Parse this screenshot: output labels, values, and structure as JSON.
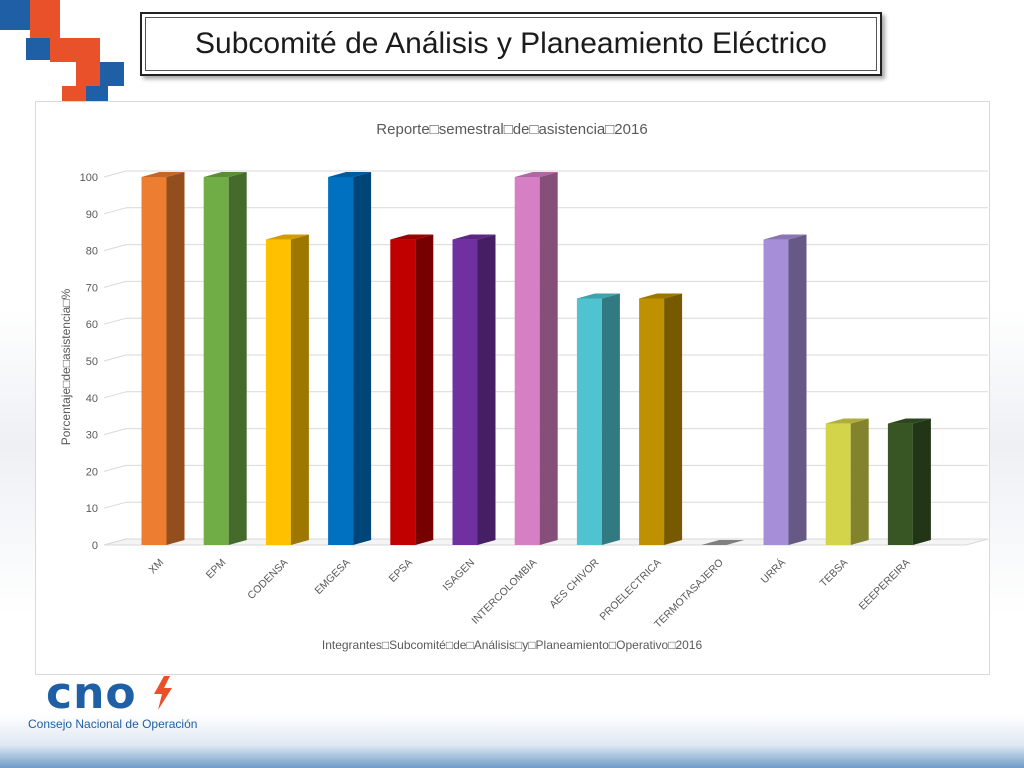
{
  "slide": {
    "title": "Subcomité de Análisis y Planeamiento Eléctrico"
  },
  "logo": {
    "word": "cno",
    "subtitle": "Consejo Nacional de Operación",
    "color": "#1f5fa6",
    "accent": "#e8512a"
  },
  "chart_data": {
    "type": "bar",
    "style": "3d-column",
    "title": "Reporte□semestral□de□asistencia□2016",
    "xlabel": "Integrantes□Subcomité□de□Análisis□y□Planeamiento□Operativo□2016",
    "ylabel": "Porcentaje□de□asistencia□%",
    "ylim": [
      0,
      100
    ],
    "yticks": [
      0,
      10,
      20,
      30,
      40,
      50,
      60,
      70,
      80,
      90,
      100
    ],
    "grid": true,
    "categories": [
      "XM",
      "EPM",
      "CODENSA",
      "EMGESA",
      "EPSA",
      "ISAGEN",
      "INTERCOLOMBIA",
      "AES CHIVOR",
      "PROELECTRICA",
      "TERMOTASAJERO",
      "URRÁ",
      "TEBSA",
      "EEEPEREIRA"
    ],
    "values": [
      100,
      100,
      83,
      100,
      83,
      83,
      100,
      67,
      67,
      0,
      83,
      33,
      33
    ],
    "colors": [
      "#ED7D31",
      "#70AD47",
      "#FFC000",
      "#0070C0",
      "#C00000",
      "#7030A0",
      "#D67FC4",
      "#4FC4D0",
      "#BF9000",
      "#7F7F7F",
      "#A68FD8",
      "#D4D44A",
      "#375623"
    ]
  }
}
